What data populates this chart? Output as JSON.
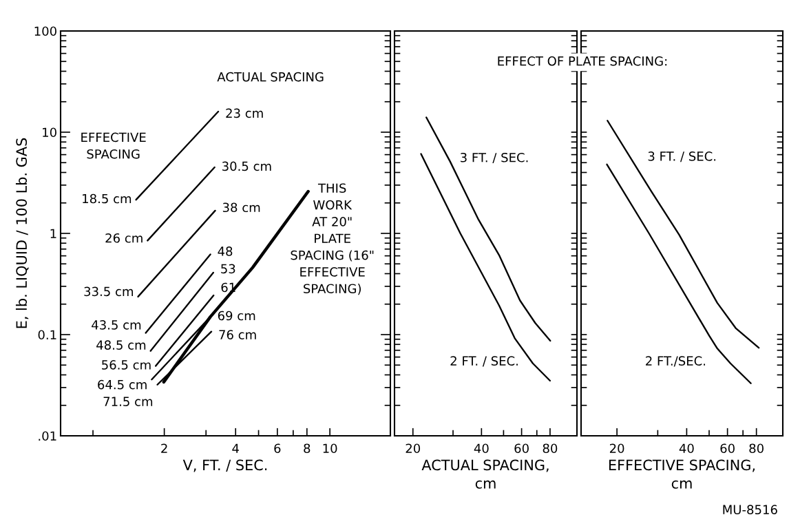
{
  "chart_data": [
    {
      "type": "line",
      "xlabel": "V, FT. / SEC.",
      "ylabel": "E, lb. LIQUID / 100 Lb. GAS",
      "log": "xy",
      "grid": false,
      "legend": false,
      "marker": "none",
      "line_style": "solid",
      "xlim": [
        0.73,
        18
      ],
      "ylim": [
        0.01,
        100
      ],
      "xticks": [
        {
          "value": 1,
          "label": null
        },
        2,
        {
          "value": 3,
          "label": null
        },
        4,
        {
          "value": 5,
          "label": null
        },
        6,
        {
          "value": 7,
          "label": null
        },
        8,
        10
      ],
      "yticks": [
        {
          "value": 0.01,
          "label": ".01"
        },
        {
          "value": 0.02,
          "label": null
        },
        {
          "value": 0.03,
          "label": null
        },
        {
          "value": 0.04,
          "label": null
        },
        {
          "value": 0.05,
          "label": null
        },
        {
          "value": 0.06,
          "label": null
        },
        {
          "value": 0.07,
          "label": null
        },
        {
          "value": 0.08,
          "label": null
        },
        {
          "value": 0.09,
          "label": null
        },
        0.1,
        {
          "value": 0.2,
          "label": null
        },
        {
          "value": 0.3,
          "label": null
        },
        {
          "value": 0.4,
          "label": null
        },
        {
          "value": 0.5,
          "label": null
        },
        {
          "value": 0.6,
          "label": null
        },
        {
          "value": 0.7,
          "label": null
        },
        {
          "value": 0.8,
          "label": null
        },
        {
          "value": 0.9,
          "label": null
        },
        1,
        {
          "value": 2,
          "label": null
        },
        {
          "value": 3,
          "label": null
        },
        {
          "value": 4,
          "label": null
        },
        {
          "value": 5,
          "label": null
        },
        {
          "value": 6,
          "label": null
        },
        {
          "value": 7,
          "label": null
        },
        {
          "value": 8,
          "label": null
        },
        {
          "value": 9,
          "label": null
        },
        10,
        {
          "value": 20,
          "label": null
        },
        {
          "value": 30,
          "label": null
        },
        {
          "value": 40,
          "label": null
        },
        {
          "value": 50,
          "label": null
        },
        {
          "value": 60,
          "label": null
        },
        {
          "value": 70,
          "label": null
        },
        {
          "value": 80,
          "label": null
        },
        {
          "value": 90,
          "label": null
        },
        100
      ],
      "series": [
        {
          "color": "#000000",
          "x": [
            1.52,
            3.38
          ],
          "values": [
            2.15,
            16
          ]
        },
        {
          "color": "#000000",
          "x": [
            1.7,
            3.26
          ],
          "values": [
            0.85,
            4.5
          ]
        },
        {
          "color": "#000000",
          "x": [
            1.55,
            3.28
          ],
          "values": [
            0.237,
            1.68
          ]
        },
        {
          "color": "#000000",
          "x": [
            1.67,
            3.13
          ],
          "values": [
            0.104,
            0.62
          ]
        },
        {
          "color": "#000000",
          "x": [
            1.75,
            3.22
          ],
          "values": [
            0.069,
            0.41
          ]
        },
        {
          "color": "#000000",
          "x": [
            1.84,
            3.23
          ],
          "values": [
            0.049,
            0.244
          ]
        },
        {
          "color": "#000000",
          "x": [
            1.77,
            3.13
          ],
          "values": [
            0.036,
            0.15
          ]
        },
        {
          "color": "#000000",
          "x": [
            1.87,
            3.16
          ],
          "values": [
            0.032,
            0.107
          ]
        },
        {
          "color": "#000000",
          "x": [
            1.99,
            3.13,
            4.72,
            8.1
          ],
          "values": [
            0.034,
            0.15,
            0.46,
            2.6
          ]
        }
      ],
      "annotations": [
        {
          "text": "23 cm",
          "x": 3.38,
          "y": 16
        },
        {
          "text": "30.5 cm",
          "x": 3.26,
          "y": 4.5
        },
        {
          "text": "38 cm",
          "x": 3.28,
          "y": 1.68
        },
        {
          "text": "48",
          "x": 3.13,
          "y": 0.62
        },
        {
          "text": "53",
          "x": 3.22,
          "y": 0.41
        },
        {
          "text": "61",
          "x": 3.23,
          "y": 0.244
        },
        {
          "text": "69 cm",
          "x": 3.13,
          "y": 0.15
        },
        {
          "text": "76 cm",
          "x": 3.16,
          "y": 0.107
        },
        {
          "text": "18.5 cm",
          "x": 1.52,
          "y": 2.15
        },
        {
          "text": "26 cm",
          "x": 1.7,
          "y": 0.85
        },
        {
          "text": "33.5 cm",
          "x": 1.55,
          "y": 0.237
        },
        {
          "text": "43.5 cm",
          "x": 1.67,
          "y": 0.104
        },
        {
          "text": "48.5 cm",
          "x": 1.75,
          "y": 0.069
        },
        {
          "text": "56.5 cm",
          "x": 1.84,
          "y": 0.049
        },
        {
          "text": "64.5 cm",
          "x": 1.77,
          "y": 0.036
        },
        {
          "text": "71.5 cm",
          "x": 1.87,
          "y": 0.032
        },
        "ACTUAL SPACING",
        "EFFECTIVE\nSPACING",
        "THIS\nWORK\nAT 20\"\nPLATE\nSPACING (16\"\nEFFECTIVE\nSPACING)"
      ]
    },
    {
      "type": "line",
      "xlabel": "ACTUAL SPACING,\ncm",
      "log": "xy",
      "grid": false,
      "legend": false,
      "marker": "none",
      "line_style": "solid",
      "tick_labels": "x",
      "xlim": [
        16.6,
        105
      ],
      "ylim": [
        0.01,
        100
      ],
      "xticks": [
        20,
        {
          "value": 30,
          "label": null
        },
        40,
        {
          "value": 50,
          "label": null
        },
        60,
        {
          "value": 70,
          "label": null
        },
        80
      ],
      "yticks": [
        {
          "value": 0.01,
          "label": null
        },
        {
          "value": 0.02,
          "label": null
        },
        {
          "value": 0.03,
          "label": null
        },
        {
          "value": 0.04,
          "label": null
        },
        {
          "value": 0.05,
          "label": null
        },
        {
          "value": 0.06,
          "label": null
        },
        {
          "value": 0.07,
          "label": null
        },
        {
          "value": 0.08,
          "label": null
        },
        {
          "value": 0.09,
          "label": null
        },
        {
          "value": 0.1,
          "label": null
        },
        {
          "value": 0.2,
          "label": null
        },
        {
          "value": 0.3,
          "label": null
        },
        {
          "value": 0.4,
          "label": null
        },
        {
          "value": 0.5,
          "label": null
        },
        {
          "value": 0.6,
          "label": null
        },
        {
          "value": 0.7,
          "label": null
        },
        {
          "value": 0.8,
          "label": null
        },
        {
          "value": 0.9,
          "label": null
        },
        {
          "value": 1,
          "label": null
        },
        {
          "value": 2,
          "label": null
        },
        {
          "value": 3,
          "label": null
        },
        {
          "value": 4,
          "label": null
        },
        {
          "value": 5,
          "label": null
        },
        {
          "value": 6,
          "label": null
        },
        {
          "value": 7,
          "label": null
        },
        {
          "value": 8,
          "label": null
        },
        {
          "value": 9,
          "label": null
        },
        {
          "value": 10,
          "label": null
        },
        {
          "value": 20,
          "label": null
        },
        {
          "value": 30,
          "label": null
        },
        {
          "value": 40,
          "label": null
        },
        {
          "value": 50,
          "label": null
        },
        {
          "value": 60,
          "label": null
        },
        {
          "value": 70,
          "label": null
        },
        {
          "value": 80,
          "label": null
        },
        {
          "value": 90,
          "label": null
        },
        {
          "value": 100,
          "label": null
        }
      ],
      "series": [
        {
          "name": "2 FT. / SEC.",
          "color": "#000000",
          "x": [
            21.7,
            32.3,
            47.8,
            56.0,
            67.2,
            80
          ],
          "values": [
            6.1,
            1.0,
            0.194,
            0.092,
            0.052,
            0.035
          ]
        },
        {
          "name": "3 FT. / SEC.",
          "color": "#000000",
          "x": [
            22.9,
            29.1,
            38.8,
            47.8,
            59.0,
            68.9,
            80.2
          ],
          "values": [
            14,
            5.15,
            1.37,
            0.61,
            0.218,
            0.13,
            0.087
          ]
        }
      ],
      "annotations": [
        "EFFECT OF PLATE SPACING:"
      ]
    },
    {
      "type": "line",
      "xlabel": "EFFECTIVE SPACING,\ncm",
      "log": "xy",
      "grid": false,
      "legend": false,
      "marker": "none",
      "line_style": "solid",
      "tick_labels": "x",
      "xlim": [
        14,
        104
      ],
      "ylim": [
        0.01,
        100
      ],
      "xticks": [
        20,
        {
          "value": 30,
          "label": null
        },
        40,
        {
          "value": 50,
          "label": null
        },
        60,
        {
          "value": 70,
          "label": null
        },
        80
      ],
      "yticks": [
        {
          "value": 0.01,
          "label": null
        },
        {
          "value": 0.02,
          "label": null
        },
        {
          "value": 0.03,
          "label": null
        },
        {
          "value": 0.04,
          "label": null
        },
        {
          "value": 0.05,
          "label": null
        },
        {
          "value": 0.06,
          "label": null
        },
        {
          "value": 0.07,
          "label": null
        },
        {
          "value": 0.08,
          "label": null
        },
        {
          "value": 0.09,
          "label": null
        },
        {
          "value": 0.1,
          "label": null
        },
        {
          "value": 0.2,
          "label": null
        },
        {
          "value": 0.3,
          "label": null
        },
        {
          "value": 0.4,
          "label": null
        },
        {
          "value": 0.5,
          "label": null
        },
        {
          "value": 0.6,
          "label": null
        },
        {
          "value": 0.7,
          "label": null
        },
        {
          "value": 0.8,
          "label": null
        },
        {
          "value": 0.9,
          "label": null
        },
        {
          "value": 1,
          "label": null
        },
        {
          "value": 2,
          "label": null
        },
        {
          "value": 3,
          "label": null
        },
        {
          "value": 4,
          "label": null
        },
        {
          "value": 5,
          "label": null
        },
        {
          "value": 6,
          "label": null
        },
        {
          "value": 7,
          "label": null
        },
        {
          "value": 8,
          "label": null
        },
        {
          "value": 9,
          "label": null
        },
        {
          "value": 10,
          "label": null
        },
        {
          "value": 20,
          "label": null
        },
        {
          "value": 30,
          "label": null
        },
        {
          "value": 40,
          "label": null
        },
        {
          "value": 50,
          "label": null
        },
        {
          "value": 60,
          "label": null
        },
        {
          "value": 70,
          "label": null
        },
        {
          "value": 80,
          "label": null
        },
        {
          "value": 90,
          "label": null
        },
        {
          "value": 100,
          "label": null
        }
      ],
      "series": [
        {
          "name": "2 FT./SEC.",
          "color": "#000000",
          "x": [
            18.1,
            27.5,
            50.1,
            54.2,
            61.8,
            75.7
          ],
          "values": [
            4.8,
            1.0,
            0.097,
            0.073,
            0.052,
            0.033
          ]
        },
        {
          "name": "3 FT. / SEC.",
          "color": "#000000",
          "x": [
            18.2,
            28.2,
            37.1,
            54.2,
            65.1,
            81.9
          ],
          "values": [
            13,
            2.58,
            0.97,
            0.206,
            0.116,
            0.074
          ]
        }
      ],
      "annotations": [
        "MU-8516"
      ]
    }
  ]
}
